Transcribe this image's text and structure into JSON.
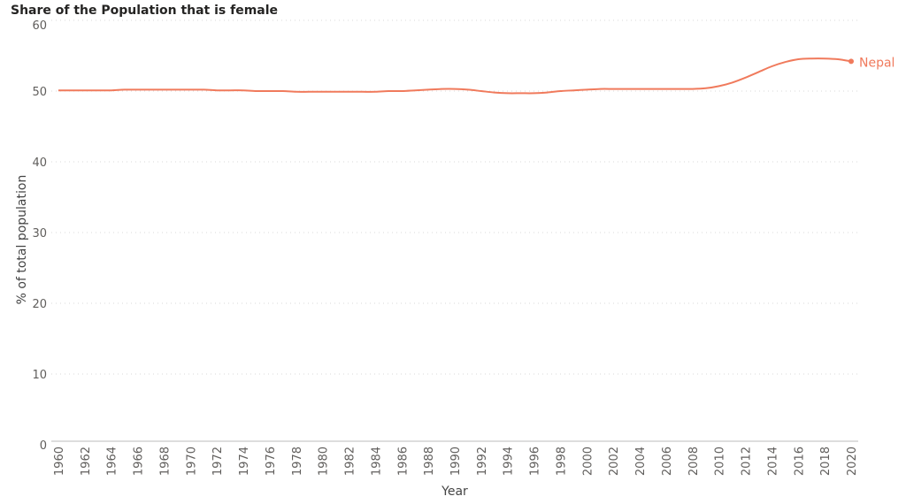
{
  "chart_data": {
    "type": "line",
    "title": "Share of the Population that is female",
    "xlabel": "Year",
    "ylabel": "% of total population",
    "xlim": [
      1960,
      2020
    ],
    "ylim": [
      0,
      60
    ],
    "yticks": [
      0,
      10,
      20,
      30,
      40,
      50,
      60
    ],
    "xticks": [
      1960,
      1962,
      1964,
      1966,
      1968,
      1970,
      1972,
      1974,
      1976,
      1978,
      1980,
      1982,
      1984,
      1986,
      1988,
      1990,
      1992,
      1994,
      1996,
      1998,
      2000,
      2002,
      2004,
      2006,
      2008,
      2010,
      2012,
      2014,
      2016,
      2018,
      2020
    ],
    "grid": "horizontal dotted",
    "series": [
      {
        "name": "Nepal",
        "color": "#f07a5c",
        "x": [
          1960,
          1961,
          1962,
          1963,
          1964,
          1965,
          1966,
          1967,
          1968,
          1969,
          1970,
          1971,
          1972,
          1973,
          1974,
          1975,
          1976,
          1977,
          1978,
          1979,
          1980,
          1981,
          1982,
          1983,
          1984,
          1985,
          1986,
          1987,
          1988,
          1989,
          1990,
          1991,
          1992,
          1993,
          1994,
          1995,
          1996,
          1997,
          1998,
          1999,
          2000,
          2001,
          2002,
          2003,
          2004,
          2005,
          2006,
          2007,
          2008,
          2009,
          2010,
          2011,
          2012,
          2013,
          2014,
          2015,
          2016,
          2017,
          2018,
          2019,
          2020
        ],
        "values": [
          50.1,
          50.1,
          50.1,
          50.1,
          50.1,
          50.2,
          50.2,
          50.2,
          50.2,
          50.2,
          50.2,
          50.2,
          50.1,
          50.1,
          50.1,
          50.0,
          50.0,
          50.0,
          49.9,
          49.9,
          49.9,
          49.9,
          49.9,
          49.9,
          49.9,
          50.0,
          50.0,
          50.1,
          50.2,
          50.3,
          50.3,
          50.2,
          50.0,
          49.8,
          49.7,
          49.7,
          49.7,
          49.8,
          50.0,
          50.1,
          50.2,
          50.3,
          50.3,
          50.3,
          50.3,
          50.3,
          50.3,
          50.3,
          50.3,
          50.4,
          50.7,
          51.2,
          51.9,
          52.7,
          53.5,
          54.1,
          54.5,
          54.6,
          54.6,
          54.5,
          54.2
        ]
      }
    ]
  }
}
